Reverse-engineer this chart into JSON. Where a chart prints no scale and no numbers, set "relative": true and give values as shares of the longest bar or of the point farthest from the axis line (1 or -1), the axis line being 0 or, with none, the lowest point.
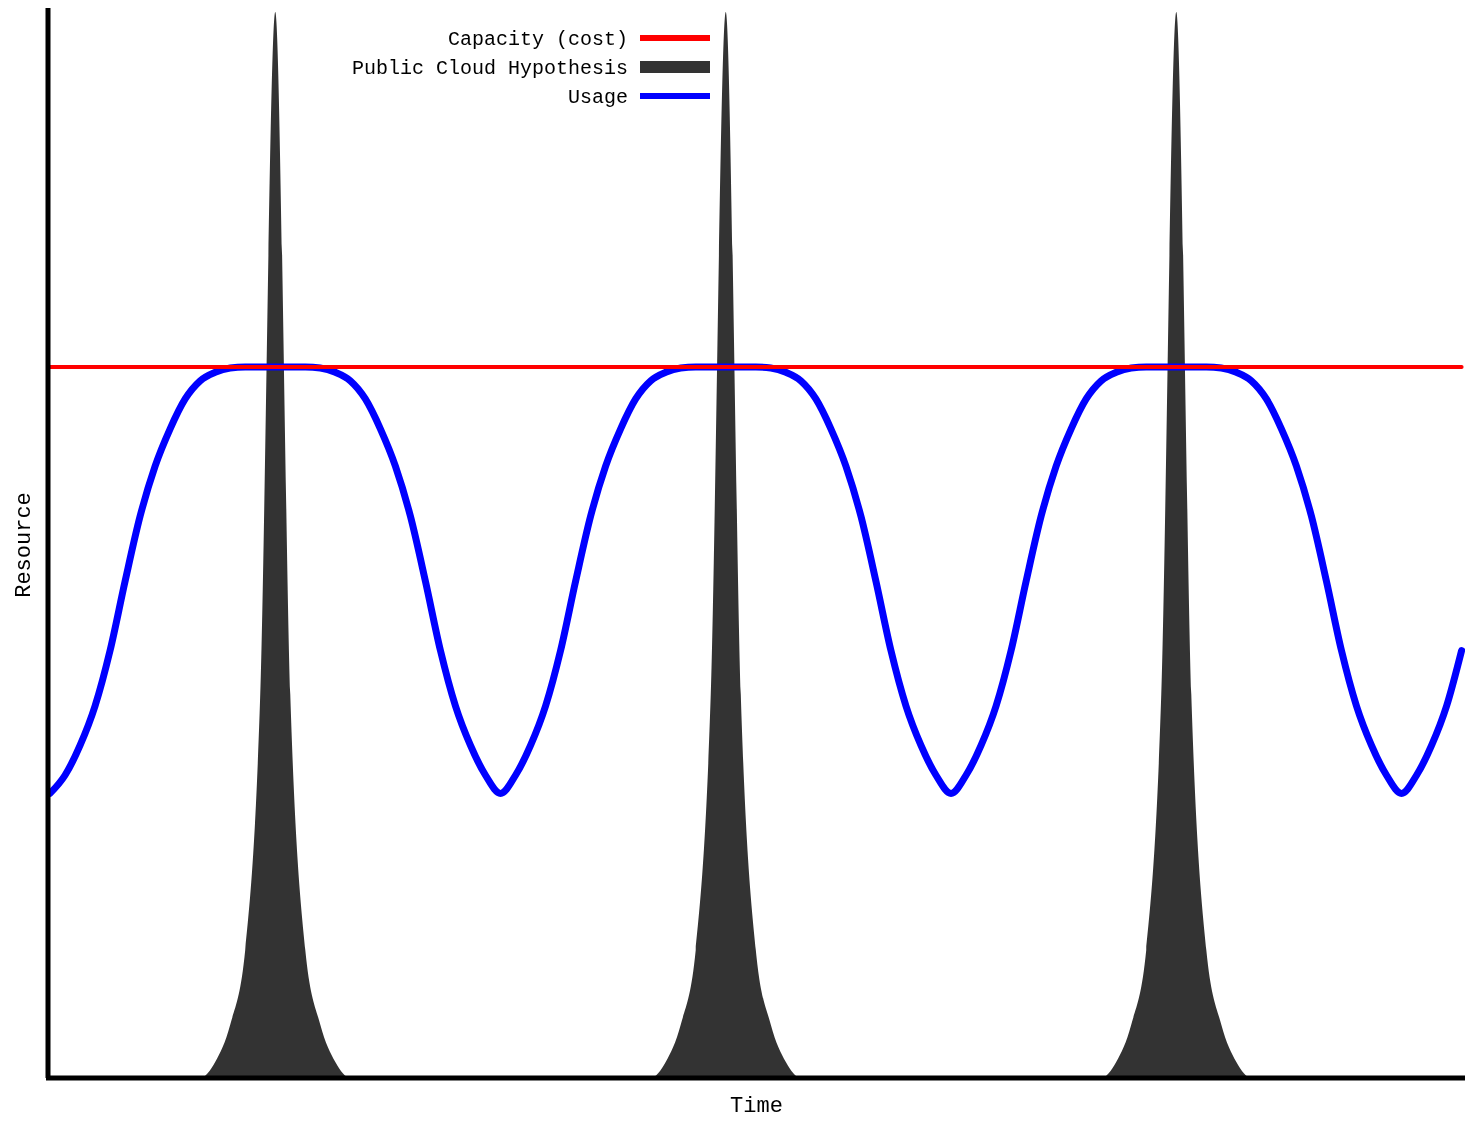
{
  "chart_data": {
    "type": "line",
    "xlabel": "Time",
    "ylabel": "Resource",
    "relative": true,
    "legend": "top left",
    "categories": [
      null,
      null,
      null,
      null,
      null,
      null,
      null,
      null,
      null,
      null,
      null,
      null,
      null,
      null,
      null,
      null,
      null,
      null,
      null,
      null,
      null,
      null,
      null,
      null,
      null,
      null,
      null,
      null,
      null,
      null,
      null,
      null,
      null,
      null,
      null,
      null,
      null,
      null,
      null,
      null,
      null,
      null,
      null,
      null,
      null,
      null,
      null,
      null,
      null,
      null,
      null,
      null,
      null,
      null,
      null,
      null,
      null,
      null,
      null,
      null,
      null,
      null,
      null,
      null,
      null,
      null,
      null,
      null,
      null,
      null,
      null,
      null,
      null,
      null,
      null,
      null,
      null,
      null,
      null,
      null,
      null,
      null,
      null,
      null,
      null,
      null,
      null,
      null,
      null,
      null,
      null,
      null,
      null,
      null,
      null
    ],
    "series": [
      {
        "name": "Capacity (cost)",
        "color": "#ff0000",
        "values": [
          0.667,
          0.667,
          0.667,
          0.667,
          0.667,
          0.667,
          0.667,
          0.667,
          0.667,
          0.667,
          0.667,
          0.667,
          0.667,
          0.667,
          0.667,
          0.667,
          0.667,
          0.667,
          0.667,
          0.667,
          0.667,
          0.667,
          0.667,
          0.667,
          0.667,
          0.667,
          0.667,
          0.667,
          0.667,
          0.667,
          0.667,
          0.667,
          0.667,
          0.667,
          0.667,
          0.667,
          0.667,
          0.667,
          0.667,
          0.667,
          0.667,
          0.667,
          0.667,
          0.667,
          0.667,
          0.667,
          0.667,
          0.667,
          0.667,
          0.667,
          0.667,
          0.667,
          0.667,
          0.667,
          0.667,
          0.667,
          0.667,
          0.667,
          0.667,
          0.667,
          0.667,
          0.667,
          0.667,
          0.667,
          0.667,
          0.667,
          0.667,
          0.667,
          0.667,
          0.667,
          0.667,
          0.667,
          0.667,
          0.667,
          0.667,
          0.667,
          0.667,
          0.667,
          0.667,
          0.667,
          0.667,
          0.667,
          0.667,
          0.667,
          0.667,
          0.667,
          0.667,
          0.667,
          0.667,
          0.667,
          0.667,
          0.667,
          0.667,
          0.667,
          0.667
        ]
      },
      {
        "name": "Public Cloud Hypothesis",
        "color": "#333333",
        "type": "area",
        "values": [
          0,
          0,
          0,
          0,
          0,
          0,
          0,
          0,
          0,
          0,
          0,
          0.015,
          0.05,
          0.12,
          0.36,
          1,
          0.36,
          0.12,
          0.05,
          0.015,
          0,
          0,
          0,
          0,
          0,
          0,
          0,
          0,
          0,
          0,
          0,
          0,
          0,
          0,
          0,
          0,
          0,
          0,
          0,
          0,
          0,
          0.015,
          0.05,
          0.12,
          0.36,
          1,
          0.36,
          0.12,
          0.05,
          0.015,
          0,
          0,
          0,
          0,
          0,
          0,
          0,
          0,
          0,
          0,
          0,
          0,
          0,
          0,
          0,
          0,
          0,
          0,
          0,
          0,
          0,
          0.015,
          0.05,
          0.12,
          0.36,
          1,
          0.36,
          0.12,
          0.05,
          0.015,
          0,
          0,
          0,
          0,
          0,
          0,
          0,
          0,
          0,
          0,
          0,
          0,
          0,
          0,
          0
        ]
      },
      {
        "name": "Usage",
        "color": "#0000ff",
        "values": [
          0.267,
          0.284,
          0.312,
          0.349,
          0.401,
          0.466,
          0.527,
          0.574,
          0.609,
          0.637,
          0.654,
          0.662,
          0.666,
          0.667,
          0.667,
          0.667,
          0.667,
          0.667,
          0.666,
          0.662,
          0.654,
          0.637,
          0.609,
          0.574,
          0.527,
          0.466,
          0.401,
          0.349,
          0.312,
          0.284,
          0.267,
          0.284,
          0.312,
          0.349,
          0.401,
          0.466,
          0.527,
          0.574,
          0.609,
          0.637,
          0.654,
          0.662,
          0.666,
          0.667,
          0.667,
          0.667,
          0.667,
          0.667,
          0.666,
          0.662,
          0.654,
          0.637,
          0.609,
          0.574,
          0.527,
          0.466,
          0.401,
          0.349,
          0.312,
          0.284,
          0.267,
          0.284,
          0.312,
          0.349,
          0.401,
          0.466,
          0.527,
          0.574,
          0.609,
          0.637,
          0.654,
          0.662,
          0.666,
          0.667,
          0.667,
          0.667,
          0.667,
          0.667,
          0.666,
          0.662,
          0.654,
          0.637,
          0.609,
          0.574,
          0.527,
          0.466,
          0.401,
          0.349,
          0.312,
          0.284,
          0.267,
          0.284,
          0.312,
          0.349,
          0.401
        ]
      }
    ]
  }
}
